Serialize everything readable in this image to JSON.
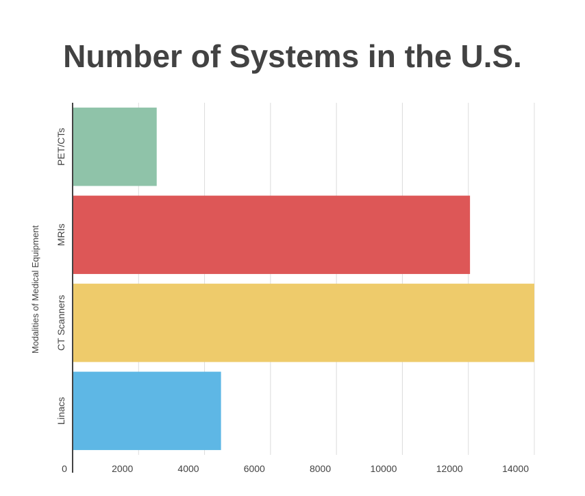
{
  "chart_data": {
    "type": "bar",
    "orientation": "horizontal",
    "title": "Number of Systems in the U.S.",
    "ylabel": "Modalities of Medical Equipment",
    "xlabel": "",
    "categories": [
      "PET/CTs",
      "MRIs",
      "CT Scanners",
      "Linacs"
    ],
    "values": [
      2550,
      12050,
      14000,
      4500
    ],
    "colors": [
      "#8fc3a9",
      "#dd5757",
      "#eecb6b",
      "#5eb7e5"
    ],
    "xlim": [
      0,
      14000
    ],
    "xticks": [
      0,
      2000,
      4000,
      6000,
      8000,
      10000,
      12000,
      14000
    ],
    "grid": true,
    "legend": "none"
  }
}
